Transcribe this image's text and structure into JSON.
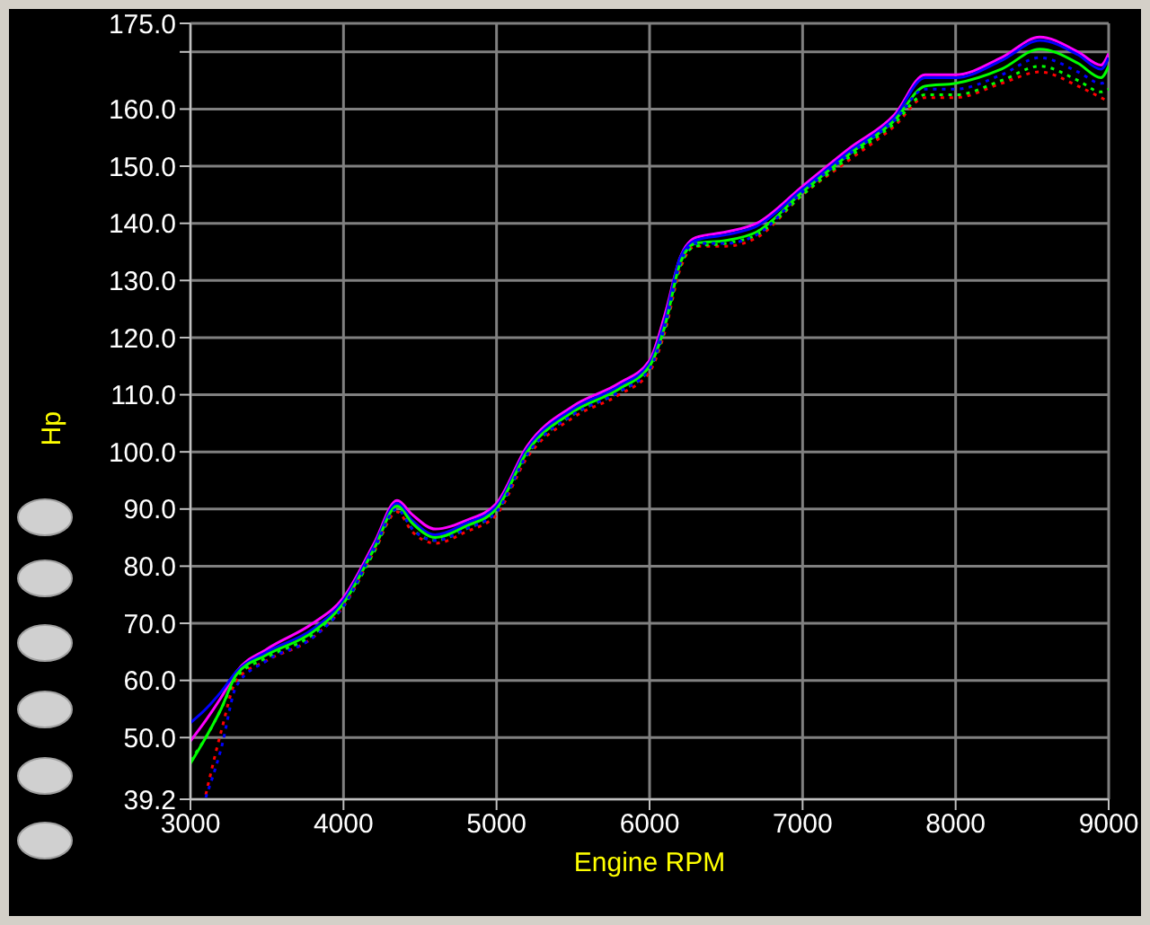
{
  "chart_data": {
    "type": "line",
    "xlabel": "Engine RPM",
    "ylabel": "Hp",
    "x": [
      3000,
      3100,
      3200,
      3300,
      3500,
      3800,
      4000,
      4200,
      4350,
      4450,
      4600,
      4800,
      5000,
      5200,
      5500,
      5800,
      6000,
      6100,
      6200,
      6300,
      6500,
      6700,
      7000,
      7300,
      7600,
      7800,
      8000,
      8300,
      8550,
      8800,
      8950,
      9000
    ],
    "series": [
      {
        "color": "#ff00ff",
        "line_style": "solid",
        "values": [
          49.4,
          53,
          57,
          61.5,
          65.5,
          70,
          74.5,
          84,
          91.5,
          89,
          86.5,
          88,
          91,
          101,
          108,
          112,
          116,
          124,
          134,
          137.5,
          138.5,
          140,
          146.5,
          153,
          159,
          166,
          166,
          169,
          172.6,
          170,
          167.7,
          169.7
        ]
      },
      {
        "color": "#0000ff",
        "line_style": "solid",
        "values": [
          52.6,
          55,
          58,
          61.5,
          65,
          69,
          74,
          83.5,
          91,
          88,
          85.5,
          87.5,
          90.5,
          100.5,
          107.5,
          111.5,
          115.5,
          123,
          134,
          137,
          138,
          139.5,
          146,
          152.5,
          158.5,
          165.5,
          165.5,
          168.5,
          172,
          169.5,
          167,
          169
        ]
      },
      {
        "color": "#00ff00",
        "line_style": "solid",
        "values": [
          45.5,
          50,
          55,
          61,
          64.5,
          68.5,
          73.5,
          83,
          90.5,
          87.5,
          85,
          87,
          90,
          100,
          107,
          111,
          115,
          122,
          133,
          136.5,
          137,
          138.5,
          145.5,
          152,
          158,
          164,
          164.5,
          167,
          170.5,
          168,
          165.5,
          167.5
        ]
      },
      {
        "color": "#ff0000",
        "line_style": "dotted",
        "values": [
          null,
          40,
          51,
          60,
          63.5,
          67.5,
          73,
          82.5,
          89.5,
          86,
          84,
          86,
          89,
          99,
          106,
          110,
          114,
          121,
          132,
          136,
          136,
          137.5,
          145,
          151,
          157,
          162,
          162,
          164.5,
          166.5,
          164,
          162,
          161.3
        ]
      },
      {
        "color": "#00ff00",
        "line_style": "dotted",
        "values": [
          46,
          50,
          55,
          60.5,
          64,
          68,
          73,
          82.5,
          90,
          86.5,
          84.5,
          86.5,
          89.5,
          99.5,
          106.5,
          110.5,
          114.5,
          121.5,
          132.5,
          136,
          136.5,
          138,
          145,
          151.5,
          157.5,
          162.5,
          162.5,
          165,
          167.5,
          165,
          163,
          163.5
        ]
      },
      {
        "color": "#0000ff",
        "line_style": "dotted",
        "values": [
          null,
          39.5,
          48,
          59,
          63.5,
          67.5,
          73,
          83,
          90,
          86.5,
          84.5,
          86.5,
          89.5,
          99.5,
          106.5,
          110.5,
          114.5,
          122,
          133,
          136.5,
          136.5,
          138,
          145.5,
          152,
          158,
          163.5,
          163.5,
          166,
          169,
          166.5,
          164.5,
          165
        ]
      }
    ],
    "xlim": [
      3000,
      9000
    ],
    "xticks": [
      3000,
      4000,
      5000,
      6000,
      7000,
      8000,
      9000
    ],
    "ylim": [
      39.2,
      175
    ],
    "yticks": [
      {
        "value": 39.2,
        "label": "39.2"
      },
      {
        "value": 50,
        "label": "50.0"
      },
      {
        "value": 60,
        "label": "60.0"
      },
      {
        "value": 70,
        "label": "70.0"
      },
      {
        "value": 80,
        "label": "80.0"
      },
      {
        "value": 90,
        "label": "90.0"
      },
      {
        "value": 100,
        "label": "100.0"
      },
      {
        "value": 110,
        "label": "110.0"
      },
      {
        "value": 120,
        "label": "120.0"
      },
      {
        "value": 130,
        "label": "130.0"
      },
      {
        "value": 140,
        "label": "140.0"
      },
      {
        "value": 150,
        "label": "150.0"
      },
      {
        "value": 160,
        "label": "160.0"
      },
      {
        "value": 170,
        "label": null
      },
      {
        "value": 175,
        "label": "175.0"
      }
    ],
    "grid": true,
    "legend": false,
    "marker": "none"
  }
}
